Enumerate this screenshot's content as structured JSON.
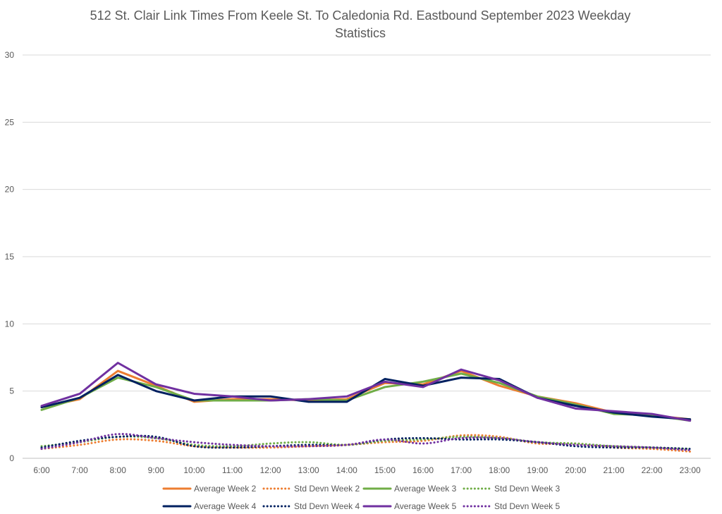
{
  "chart_data": {
    "type": "line",
    "title_lines": [
      "512 St. Clair Link Times From Keele St. To Caledonia Rd. Eastbound September 2023 Weekday",
      "Statistics"
    ],
    "xlabel": "",
    "ylabel": "",
    "categories": [
      "6:00",
      "7:00",
      "8:00",
      "9:00",
      "10:00",
      "11:00",
      "12:00",
      "13:00",
      "14:00",
      "15:00",
      "16:00",
      "17:00",
      "18:00",
      "19:00",
      "20:00",
      "21:00",
      "22:00",
      "23:00"
    ],
    "ylim": [
      0,
      30
    ],
    "yticks": [
      0,
      5,
      10,
      15,
      20,
      25,
      30
    ],
    "grid": true,
    "legend_position": "bottom",
    "series": [
      {
        "name": "Average Week 2",
        "style": "solid",
        "color": "#ED7D31",
        "values": [
          3.8,
          4.4,
          6.5,
          5.4,
          4.2,
          4.4,
          4.4,
          4.3,
          4.4,
          5.6,
          5.5,
          6.5,
          5.4,
          4.6,
          4.1,
          3.4,
          3.2,
          2.9
        ]
      },
      {
        "name": "Std Devn Week 2",
        "style": "dotted",
        "color": "#ED7D31",
        "values": [
          0.7,
          1.0,
          1.4,
          1.3,
          0.9,
          0.8,
          0.8,
          0.9,
          1.0,
          1.2,
          1.3,
          1.7,
          1.6,
          1.1,
          1.1,
          0.8,
          0.7,
          0.5
        ]
      },
      {
        "name": "Average Week 3",
        "style": "solid",
        "color": "#70AD47",
        "values": [
          3.6,
          4.5,
          6.0,
          5.3,
          4.3,
          4.3,
          4.3,
          4.4,
          4.3,
          5.3,
          5.7,
          6.3,
          5.6,
          4.6,
          4.0,
          3.3,
          3.2,
          2.8
        ]
      },
      {
        "name": "Std Devn Week 3",
        "style": "dotted",
        "color": "#70AD47",
        "values": [
          0.9,
          1.2,
          1.6,
          1.5,
          1.0,
          0.9,
          1.1,
          1.2,
          1.0,
          1.3,
          1.4,
          1.6,
          1.5,
          1.2,
          1.1,
          0.9,
          0.8,
          0.7
        ]
      },
      {
        "name": "Average Week 4",
        "style": "solid",
        "color": "#002060",
        "values": [
          3.8,
          4.5,
          6.2,
          5.0,
          4.3,
          4.6,
          4.6,
          4.2,
          4.2,
          5.9,
          5.4,
          6.0,
          5.9,
          4.5,
          3.9,
          3.4,
          3.1,
          2.9
        ]
      },
      {
        "name": "Std Devn Week 4",
        "style": "dotted",
        "color": "#002060",
        "values": [
          0.8,
          1.3,
          1.6,
          1.6,
          0.9,
          0.8,
          0.9,
          1.0,
          1.0,
          1.4,
          1.5,
          1.4,
          1.4,
          1.2,
          0.9,
          0.8,
          0.8,
          0.7
        ]
      },
      {
        "name": "Average Week 5",
        "style": "solid",
        "color": "#7030A0",
        "values": [
          3.9,
          4.8,
          7.1,
          5.5,
          4.8,
          4.6,
          4.3,
          4.4,
          4.6,
          5.7,
          5.3,
          6.6,
          5.8,
          4.5,
          3.7,
          3.5,
          3.3,
          2.8
        ]
      },
      {
        "name": "Std Devn Week 5",
        "style": "dotted",
        "color": "#7030A0",
        "values": [
          0.7,
          1.2,
          1.8,
          1.5,
          1.2,
          1.0,
          0.9,
          0.9,
          1.0,
          1.4,
          1.1,
          1.5,
          1.5,
          1.2,
          1.0,
          0.9,
          0.8,
          0.6
        ]
      }
    ]
  }
}
